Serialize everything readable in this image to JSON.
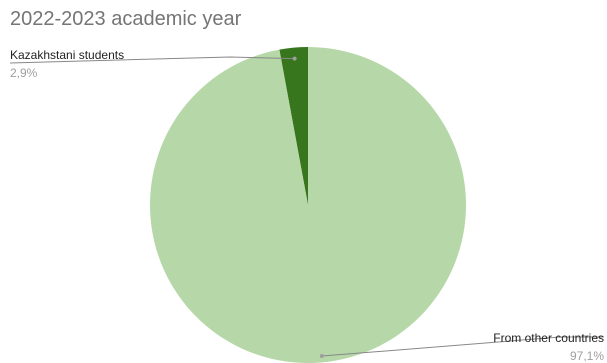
{
  "chart_data": {
    "type": "pie",
    "title": "2022-2023 academic year",
    "slices": [
      {
        "name": "Kazakhstani students",
        "value": 2.9,
        "label": "2,9%",
        "color": "#38761d"
      },
      {
        "name": "From other countries",
        "value": 97.1,
        "label": "97,1%",
        "color": "#b6d7a8"
      }
    ],
    "start_angle_deg": 0,
    "direction": "counterclockwise",
    "label_style": "callout"
  }
}
